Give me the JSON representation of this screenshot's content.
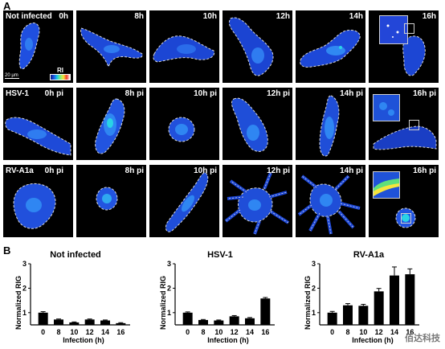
{
  "panel_a": {
    "letter": "A",
    "rows": [
      {
        "condition": "Not infected",
        "timepoints": [
          "0h",
          "8h",
          "10h",
          "12h",
          "14h",
          "16h"
        ],
        "scale_bar": "20 μm",
        "colorbar_label": "RI"
      },
      {
        "condition": "HSV-1",
        "timepoints": [
          "0h pi",
          "8h pi",
          "10h pi",
          "12h pi",
          "14h pi",
          "16h pi"
        ]
      },
      {
        "condition": "RV-A1a",
        "timepoints": [
          "0h pi",
          "8h pi",
          "10h pi",
          "12h pi",
          "14h pi",
          "16h pi"
        ]
      }
    ],
    "colors": {
      "background": "#000000",
      "cell_low": "#1234c8",
      "cell_mid": "#2f7cf0",
      "cell_high": "#29d3e6",
      "outline": "#d8d8d8"
    }
  },
  "panel_b": {
    "letter": "B"
  },
  "chart_data": [
    {
      "type": "bar",
      "title": "Not infected",
      "xlabel": "Infection (h)",
      "ylabel": "Normalized RIG",
      "categories": [
        "0",
        "8",
        "10",
        "12",
        "14",
        "16"
      ],
      "values": [
        1.0,
        0.72,
        0.6,
        0.72,
        0.68,
        0.57
      ],
      "errors": [
        0.04,
        0.02,
        0.02,
        0.02,
        0.02,
        0.02
      ],
      "ylim": [
        0.5,
        3.0
      ],
      "yticks": [
        "1",
        "2",
        "3"
      ],
      "bar_color": "#000000"
    },
    {
      "type": "bar",
      "title": "HSV-1",
      "xlabel": "Infection (h)",
      "ylabel": "Normalized RIG",
      "categories": [
        "0",
        "8",
        "10",
        "12",
        "14",
        "16"
      ],
      "values": [
        1.0,
        0.7,
        0.68,
        0.85,
        0.77,
        1.58
      ],
      "errors": [
        0.03,
        0.02,
        0.02,
        0.03,
        0.03,
        0.04
      ],
      "ylim": [
        0.5,
        3.0
      ],
      "yticks": [
        "1",
        "2",
        "3"
      ],
      "bar_color": "#000000"
    },
    {
      "type": "bar",
      "title": "RV-A1a",
      "xlabel": "Infection (h)",
      "ylabel": "Normalized RIG",
      "categories": [
        "0",
        "8",
        "10",
        "12",
        "14",
        "16"
      ],
      "values": [
        1.0,
        1.3,
        1.28,
        1.87,
        2.52,
        2.57
      ],
      "errors": [
        0.05,
        0.07,
        0.06,
        0.12,
        0.35,
        0.22
      ],
      "ylim": [
        0.5,
        3.0
      ],
      "yticks": [
        "1",
        "2",
        "3"
      ],
      "bar_color": "#000000"
    }
  ],
  "watermark": "佰达科技"
}
